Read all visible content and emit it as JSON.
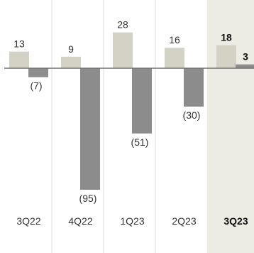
{
  "chart_data": {
    "type": "bar",
    "categories": [
      "3Q22",
      "4Q22",
      "1Q23",
      "2Q23",
      "3Q23"
    ],
    "series": [
      {
        "values": [
          13,
          9,
          28,
          16,
          18
        ]
      },
      {
        "values": [
          -7,
          -95,
          -51,
          -30,
          3
        ]
      }
    ],
    "value_labels": [
      [
        "13",
        "9",
        "28",
        "16",
        "18"
      ],
      [
        "(7)",
        "(95)",
        "(51)",
        "(30)",
        "3"
      ]
    ],
    "highlighted_category": "3Q23",
    "ylim": [
      -100,
      30
    ],
    "grid": false,
    "legend": "none",
    "colors": {
      "series1": "#d4d1c5",
      "series2": "#8c8c8c",
      "separator": "#dcdcdc",
      "highlight_bg": "#ecece4",
      "baseline": "#707070"
    }
  }
}
